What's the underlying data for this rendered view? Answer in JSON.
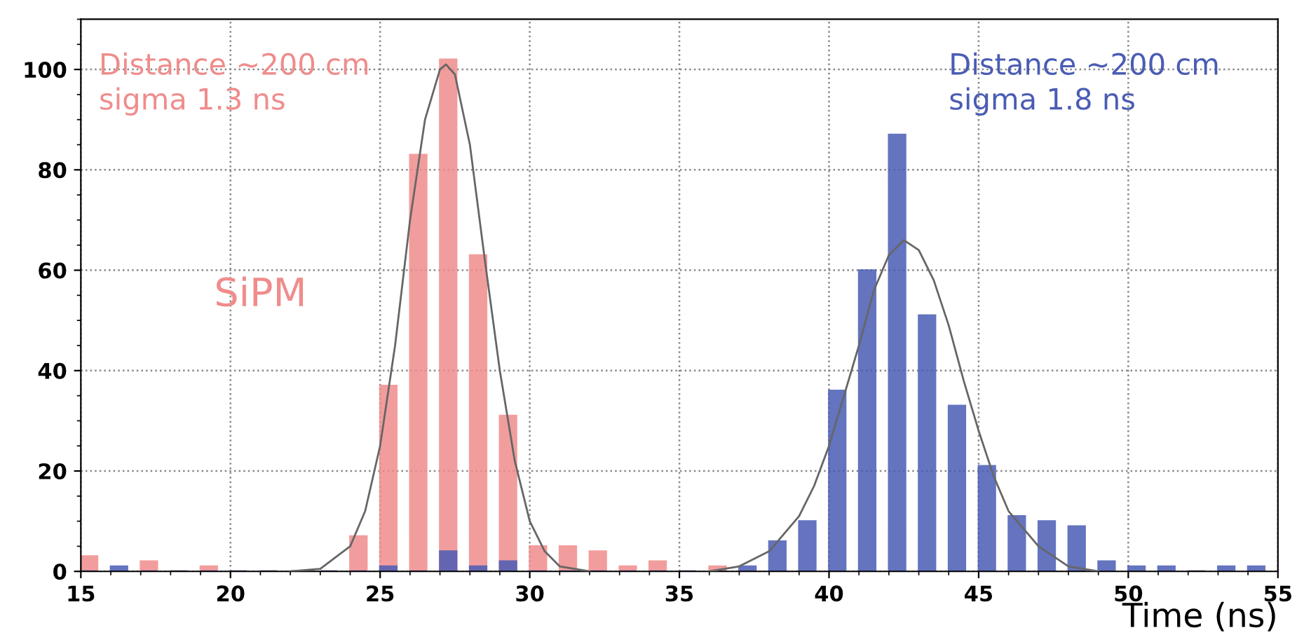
{
  "chart_data": {
    "type": "histogram",
    "xlabel": "Time (ns)",
    "bins": [
      15,
      16,
      17,
      18,
      19,
      20,
      21,
      22,
      23,
      24,
      25,
      26,
      27,
      28,
      29,
      30,
      31,
      32,
      33,
      34,
      35,
      36,
      37,
      38,
      39,
      40,
      41,
      42,
      43,
      44,
      45,
      46,
      47,
      48,
      49,
      50,
      51,
      52,
      53,
      54,
      55
    ],
    "series": [
      {
        "name": "SiPM",
        "color": "#f08c8c",
        "values": [
          3,
          0,
          2,
          0,
          1,
          0,
          0,
          0,
          0,
          7,
          37,
          83,
          102,
          63,
          31,
          5,
          5,
          4,
          1,
          2,
          0,
          1,
          0,
          0,
          0,
          0,
          0,
          0,
          0,
          0,
          0,
          0,
          0,
          0,
          0,
          0,
          0,
          0,
          0,
          0
        ]
      },
      {
        "color": "#4a5cb4",
        "values": [
          0,
          1,
          0,
          0,
          0,
          0,
          0,
          0,
          0,
          0,
          1,
          0,
          4,
          1,
          2,
          0,
          0,
          0,
          0,
          0,
          0,
          0,
          1,
          6,
          10,
          36,
          60,
          87,
          51,
          33,
          21,
          11,
          10,
          9,
          2,
          1,
          1,
          0,
          1,
          1
        ]
      },
      {
        "type": "line",
        "color": "#666666",
        "x": [
          22,
          23,
          24,
          24.5,
          25,
          25.5,
          26,
          26.5,
          27,
          27.2,
          27.5,
          28,
          28.5,
          29,
          29.5,
          30,
          30.5,
          31,
          32
        ],
        "values": [
          0,
          0.5,
          5,
          12,
          25,
          45,
          70,
          90,
          100,
          101,
          99,
          85,
          62,
          40,
          22,
          10,
          4,
          1,
          0
        ]
      },
      {
        "type": "line",
        "color": "#666666",
        "x": [
          36,
          37,
          38,
          39,
          39.5,
          40,
          40.5,
          41,
          41.5,
          42,
          42.5,
          43,
          43.5,
          44,
          44.5,
          45,
          45.5,
          46,
          47,
          48,
          49
        ],
        "values": [
          0,
          1,
          4,
          11,
          17,
          25,
          35,
          45,
          56,
          63,
          66,
          64,
          58,
          49,
          38,
          28,
          19,
          12,
          5,
          1,
          0
        ]
      }
    ],
    "annotations": [
      "Distance ~200 cm\nsigma 1.3 ns",
      "Distance ~200 cm\nsigma 1.8 ns"
    ],
    "xlim": [
      15,
      55
    ],
    "xticks": [
      15,
      20,
      25,
      30,
      35,
      40,
      45,
      50,
      55
    ],
    "ylim": [
      0,
      110
    ],
    "yticks": [
      0,
      20,
      40,
      60,
      80,
      100
    ],
    "grid": true,
    "legend": false
  }
}
